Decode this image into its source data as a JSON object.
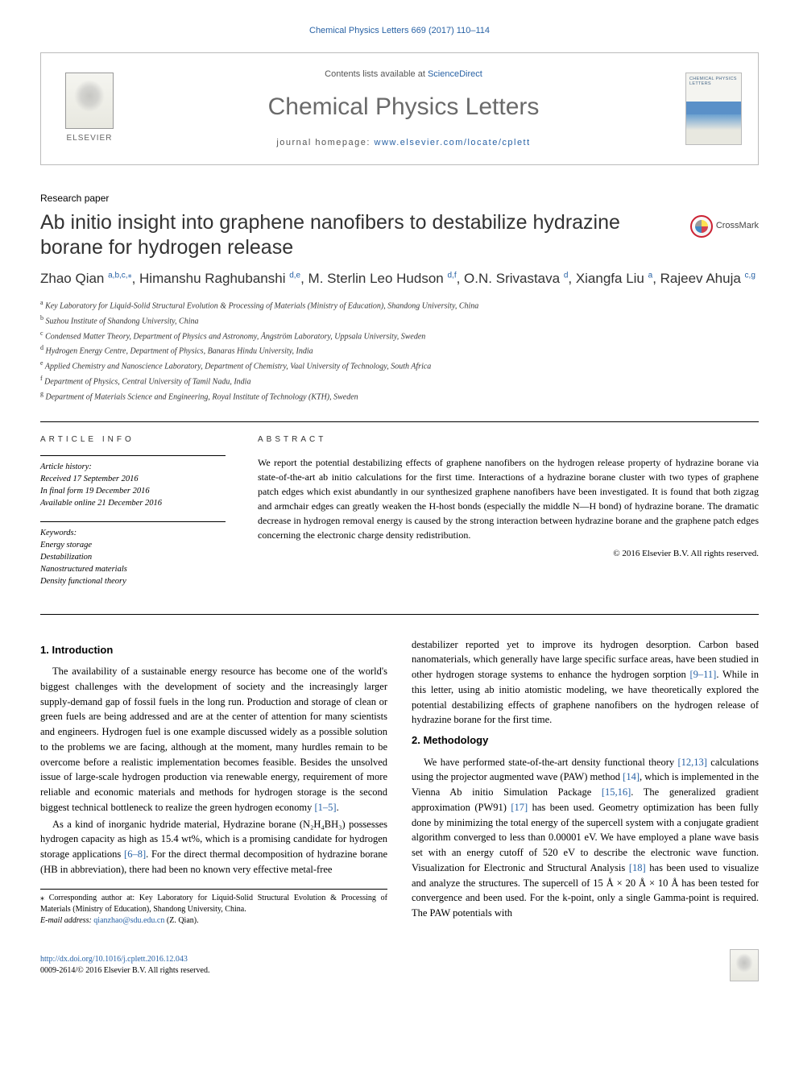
{
  "meta": {
    "citation": "Chemical Physics Letters 669 (2017) 110–114",
    "contents_prefix": "Contents lists available at ",
    "contents_link": "ScienceDirect",
    "journal": "Chemical Physics Letters",
    "homepage_prefix": "journal homepage: ",
    "homepage_url": "www.elsevier.com/locate/cplett",
    "publisher": "ELSEVIER",
    "cover_text": "CHEMICAL PHYSICS LETTERS"
  },
  "paper": {
    "type": "Research paper",
    "title": "Ab initio insight into graphene nanofibers to destabilize hydrazine borane for hydrogen release",
    "crossmark": "CrossMark"
  },
  "authors_html": "Zhao Qian <sup>a,b,c,</sup><sup class='sup-star'>⁎</sup>, Himanshu Raghubanshi <sup>d,e</sup>, M. Sterlin Leo Hudson <sup>d,f</sup>, O.N. Srivastava <sup>d</sup>, Xiangfa Liu <sup>a</sup>, Rajeev Ahuja <sup>c,g</sup>",
  "affiliations": [
    {
      "sup": "a",
      "text": "Key Laboratory for Liquid-Solid Structural Evolution & Processing of Materials (Ministry of Education), Shandong University, China"
    },
    {
      "sup": "b",
      "text": "Suzhou Institute of Shandong University, China"
    },
    {
      "sup": "c",
      "text": "Condensed Matter Theory, Department of Physics and Astronomy, Ångström Laboratory, Uppsala University, Sweden"
    },
    {
      "sup": "d",
      "text": "Hydrogen Energy Centre, Department of Physics, Banaras Hindu University, India"
    },
    {
      "sup": "e",
      "text": "Applied Chemistry and Nanoscience Laboratory, Department of Chemistry, Vaal University of Technology, South Africa"
    },
    {
      "sup": "f",
      "text": "Department of Physics, Central University of Tamil Nadu, India"
    },
    {
      "sup": "g",
      "text": "Department of Materials Science and Engineering, Royal Institute of Technology (KTH), Sweden"
    }
  ],
  "info": {
    "label": "ARTICLE INFO",
    "history_label": "Article history:",
    "history": [
      "Received 17 September 2016",
      "In final form 19 December 2016",
      "Available online 21 December 2016"
    ],
    "keywords_label": "Keywords:",
    "keywords": [
      "Energy storage",
      "Destabilization",
      "Nanostructured materials",
      "Density functional theory"
    ]
  },
  "abstract": {
    "label": "ABSTRACT",
    "text": "We report the potential destabilizing effects of graphene nanofibers on the hydrogen release property of hydrazine borane via state-of-the-art ab initio calculations for the first time. Interactions of a hydrazine borane cluster with two types of graphene patch edges which exist abundantly in our synthesized graphene nanofibers have been investigated. It is found that both zigzag and armchair edges can greatly weaken the H-host bonds (especially the middle N—H bond) of hydrazine borane. The dramatic decrease in hydrogen removal energy is caused by the strong interaction between hydrazine borane and the graphene patch edges concerning the electronic charge density redistribution.",
    "copyright": "© 2016 Elsevier B.V. All rights reserved."
  },
  "body": {
    "s1_title": "1. Introduction",
    "s1_p1": "The availability of a sustainable energy resource has become one of the world's biggest challenges with the development of society and the increasingly larger supply-demand gap of fossil fuels in the long run. Production and storage of clean or green fuels are being addressed and are at the center of attention for many scientists and engineers. Hydrogen fuel is one example discussed widely as a possible solution to the problems we are facing, although at the moment, many hurdles remain to be overcome before a realistic implementation becomes feasible. Besides the unsolved issue of large-scale hydrogen production via renewable energy, requirement of more reliable and economic materials and methods for hydrogen storage is the second biggest technical bottleneck to realize the green hydrogen economy ",
    "s1_p1_ref": "[1–5]",
    "s1_p1_tail": ".",
    "s1_p2": "As a kind of inorganic hydride material, Hydrazine borane (N₂H₄BH₃) possesses hydrogen capacity as high as 15.4 wt%, which is a promising candidate for hydrogen storage applications ",
    "s1_p2_ref": "[6–8]",
    "s1_p2_mid": ". For the direct thermal decomposition of hydrazine borane (HB in abbreviation), there had been no known very effective metal-free",
    "s1_p2b": "destabilizer reported yet to improve its hydrogen desorption. Carbon based nanomaterials, which generally have large specific surface areas, have been studied in other hydrogen storage systems to enhance the hydrogen sorption ",
    "s1_p2b_ref": "[9–11]",
    "s1_p2b_tail": ". While in this letter, using ab initio atomistic modeling, we have theoretically explored the potential destabilizing effects of graphene nanofibers on the hydrogen release of hydrazine borane for the first time.",
    "s2_title": "2. Methodology",
    "s2_p1a": "We have performed state-of-the-art density functional theory ",
    "s2_r1": "[12,13]",
    "s2_p1b": " calculations using the projector augmented wave (PAW) method ",
    "s2_r2": "[14]",
    "s2_p1c": ", which is implemented in the Vienna Ab initio Simulation Package ",
    "s2_r3": "[15,16]",
    "s2_p1d": ". The generalized gradient approximation (PW91) ",
    "s2_r4": "[17]",
    "s2_p1e": " has been used. Geometry optimization has been fully done by minimizing the total energy of the supercell system with a conjugate gradient algorithm converged to less than 0.00001 eV. We have employed a plane wave basis set with an energy cutoff of 520 eV to describe the electronic wave function. Visualization for Electronic and Structural Analysis ",
    "s2_r5": "[18]",
    "s2_p1f": " has been used to visualize and analyze the structures. The supercell of 15 Å × 20 Å × 10 Å has been tested for convergence and been used. For the k-point, only a single Gamma-point is required. The PAW potentials with"
  },
  "footnote": {
    "corr": "⁎ Corresponding author at: Key Laboratory for Liquid-Solid Structural Evolution & Processing of Materials (Ministry of Education), Shandong University, China.",
    "email_label": "E-mail address: ",
    "email": "qianzhao@sdu.edu.cn",
    "email_who": " (Z. Qian)."
  },
  "footer": {
    "doi": "http://dx.doi.org/10.1016/j.cplett.2016.12.043",
    "issn": "0009-2614/© 2016 Elsevier B.V. All rights reserved."
  },
  "colors": {
    "link": "#2862a5",
    "text": "#000000",
    "muted": "#6a6a6a",
    "border": "#bbbbbb"
  }
}
